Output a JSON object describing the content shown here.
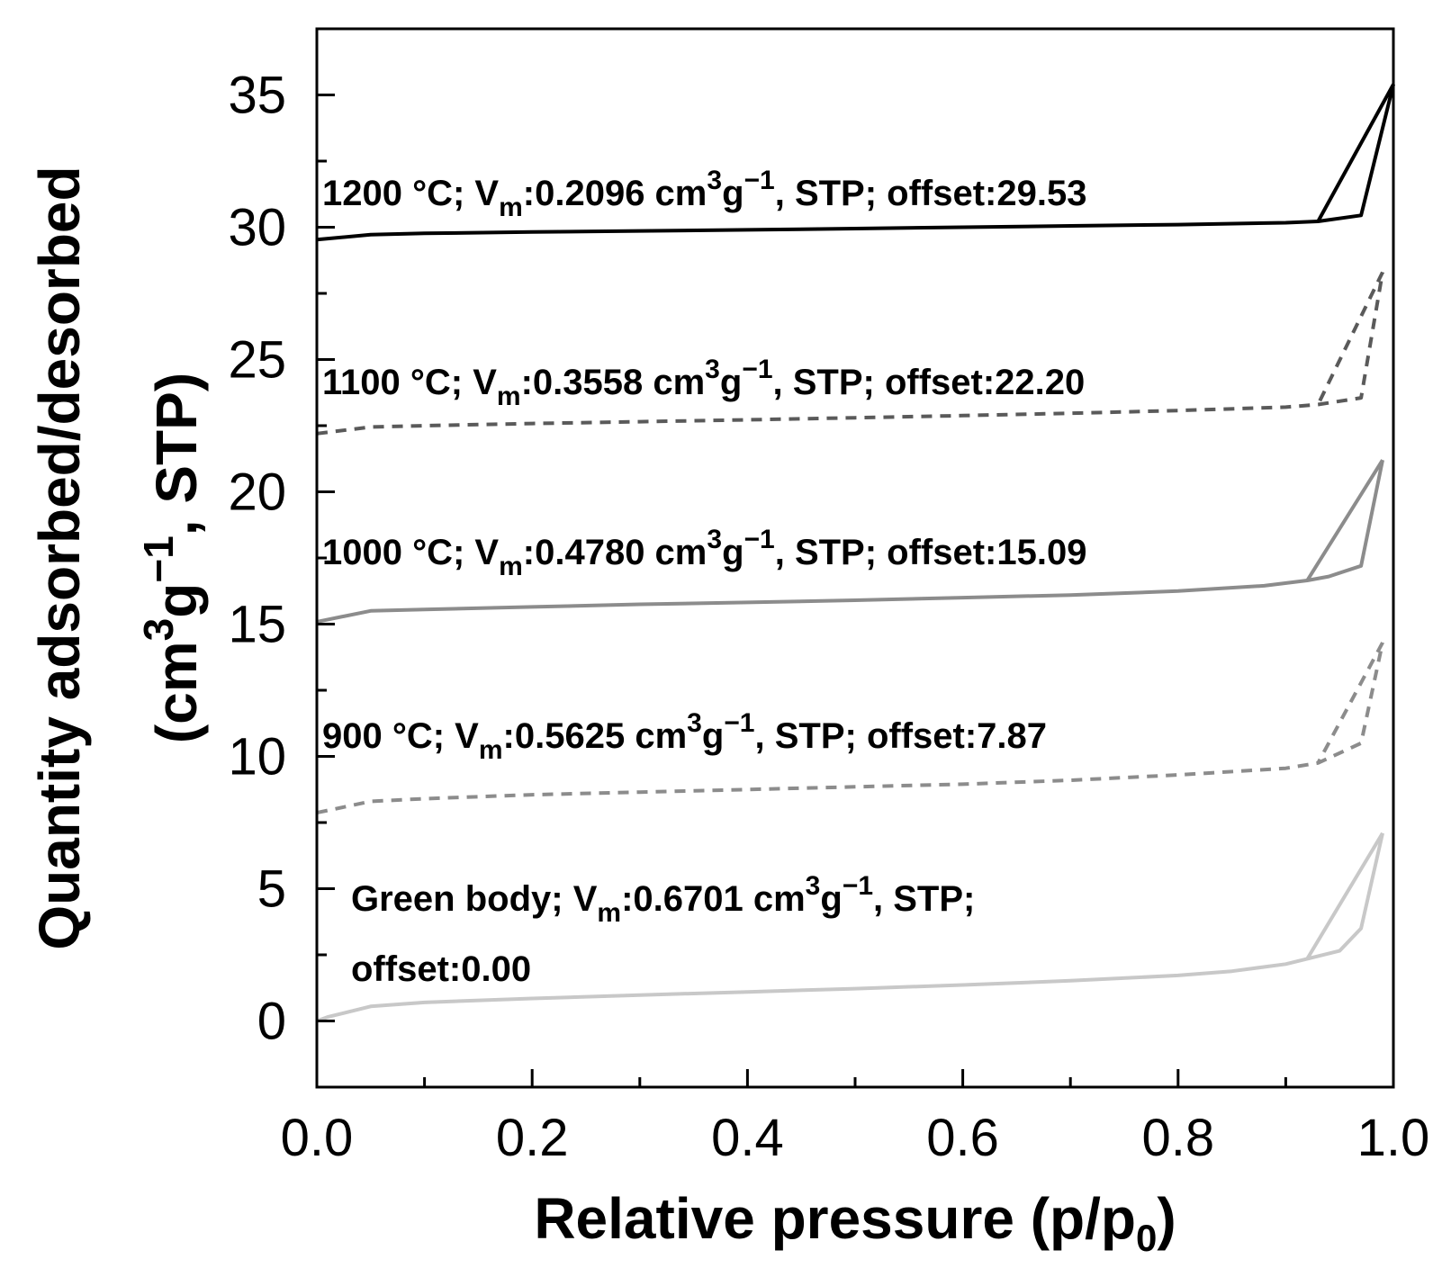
{
  "chart_data": {
    "type": "line",
    "xlabel": {
      "main": "Relative pressure (p/p",
      "sub": "0",
      "tail": ")"
    },
    "ylabel": {
      "line1": "Quantity adsorbed/desorbed",
      "line2_parts": {
        "open": "(cm",
        "sup1": "3",
        "g": "g",
        "sup2": "−1",
        "tail": ", STP)"
      }
    },
    "xlim": [
      0.0,
      1.0
    ],
    "ylim": [
      -2.5,
      37.5
    ],
    "x_ticks": [
      "0.0",
      "0.2",
      "0.4",
      "0.6",
      "0.8",
      "1.0"
    ],
    "x_tick_values": [
      0.0,
      0.2,
      0.4,
      0.6,
      0.8,
      1.0
    ],
    "y_ticks": [
      "0",
      "5",
      "10",
      "15",
      "20",
      "25",
      "30",
      "35"
    ],
    "y_tick_values": [
      0,
      5,
      10,
      15,
      20,
      25,
      30,
      35
    ],
    "series": [
      {
        "name": "Green body",
        "color": "#c8c8c8",
        "dashed": false,
        "label": {
          "prefix": "Green body; V",
          "sub": "m",
          "value": ":0.6701 cm",
          "sup1": "3",
          "g": "g",
          "sup2": "−1",
          "tail": ", STP;",
          "line2": "offset:0.00"
        },
        "adsorption": {
          "x": [
            0.0,
            0.01,
            0.05,
            0.1,
            0.2,
            0.3,
            0.4,
            0.5,
            0.6,
            0.7,
            0.8,
            0.85,
            0.9,
            0.92,
            0.95,
            0.97,
            0.99
          ],
          "y": [
            0.0,
            0.15,
            0.55,
            0.7,
            0.85,
            0.98,
            1.1,
            1.22,
            1.36,
            1.52,
            1.72,
            1.88,
            2.15,
            2.35,
            2.65,
            3.5,
            7.1
          ]
        },
        "desorption": {
          "x": [
            0.99,
            0.92
          ],
          "y": [
            7.1,
            2.35
          ]
        }
      },
      {
        "name": "900 °C",
        "color": "#8c8c8c",
        "dashed": true,
        "label": {
          "prefix": "900 °C; V",
          "sub": "m",
          "value": ":0.5625 cm",
          "sup1": "3",
          "g": "g",
          "sup2": "−1",
          "tail": ", STP; offset:7.87",
          "line2": ""
        },
        "adsorption": {
          "x": [
            0.0,
            0.05,
            0.1,
            0.2,
            0.3,
            0.4,
            0.5,
            0.6,
            0.7,
            0.8,
            0.9,
            0.93,
            0.97,
            0.99
          ],
          "y": [
            7.87,
            8.3,
            8.4,
            8.55,
            8.65,
            8.75,
            8.85,
            8.95,
            9.1,
            9.3,
            9.55,
            9.75,
            10.5,
            14.3
          ]
        },
        "desorption": {
          "x": [
            0.99,
            0.93
          ],
          "y": [
            14.3,
            9.75
          ]
        }
      },
      {
        "name": "1000 °C",
        "color": "#8c8c8c",
        "dashed": false,
        "label": {
          "prefix": "1000 °C; V",
          "sub": "m",
          "value": ":0.4780 cm",
          "sup1": "3",
          "g": "g",
          "sup2": "−1",
          "tail": ", STP; offset:15.09",
          "line2": ""
        },
        "adsorption": {
          "x": [
            0.0,
            0.05,
            0.1,
            0.2,
            0.3,
            0.4,
            0.5,
            0.6,
            0.7,
            0.8,
            0.88,
            0.92,
            0.94,
            0.97,
            0.99
          ],
          "y": [
            15.09,
            15.5,
            15.55,
            15.65,
            15.75,
            15.82,
            15.9,
            16.0,
            16.1,
            16.25,
            16.45,
            16.65,
            16.8,
            17.2,
            21.2
          ]
        },
        "desorption": {
          "x": [
            0.99,
            0.92
          ],
          "y": [
            21.2,
            16.65
          ]
        }
      },
      {
        "name": "1100 °C",
        "color": "#5a5a5a",
        "dashed": true,
        "label": {
          "prefix": "1100 °C; V",
          "sub": "m",
          "value": ":0.3558 cm",
          "sup1": "3",
          "g": "g",
          "sup2": "−1",
          "tail": ", STP; offset:22.20",
          "line2": ""
        },
        "adsorption": {
          "x": [
            0.0,
            0.05,
            0.1,
            0.2,
            0.3,
            0.4,
            0.5,
            0.6,
            0.7,
            0.8,
            0.9,
            0.93,
            0.97,
            0.99
          ],
          "y": [
            22.2,
            22.45,
            22.5,
            22.58,
            22.65,
            22.72,
            22.8,
            22.88,
            22.97,
            23.07,
            23.2,
            23.3,
            23.55,
            28.3
          ]
        },
        "desorption": {
          "x": [
            0.99,
            0.93
          ],
          "y": [
            28.3,
            23.3
          ]
        }
      },
      {
        "name": "1200 °C",
        "color": "#000000",
        "dashed": false,
        "label": {
          "prefix": "1200 °C; V",
          "sub": "m",
          "value": ":0.2096 cm",
          "sup1": "3",
          "g": "g",
          "sup2": "−1",
          "tail": ", STP; offset:29.53",
          "line2": ""
        },
        "adsorption": {
          "x": [
            0.0,
            0.05,
            0.1,
            0.2,
            0.3,
            0.4,
            0.5,
            0.6,
            0.7,
            0.8,
            0.9,
            0.93,
            0.97,
            1.0
          ],
          "y": [
            29.53,
            29.72,
            29.77,
            29.82,
            29.86,
            29.9,
            29.95,
            30.0,
            30.05,
            30.1,
            30.17,
            30.22,
            30.45,
            35.4
          ]
        },
        "desorption": {
          "x": [
            1.0,
            0.93
          ],
          "y": [
            35.4,
            30.22
          ]
        }
      }
    ]
  }
}
